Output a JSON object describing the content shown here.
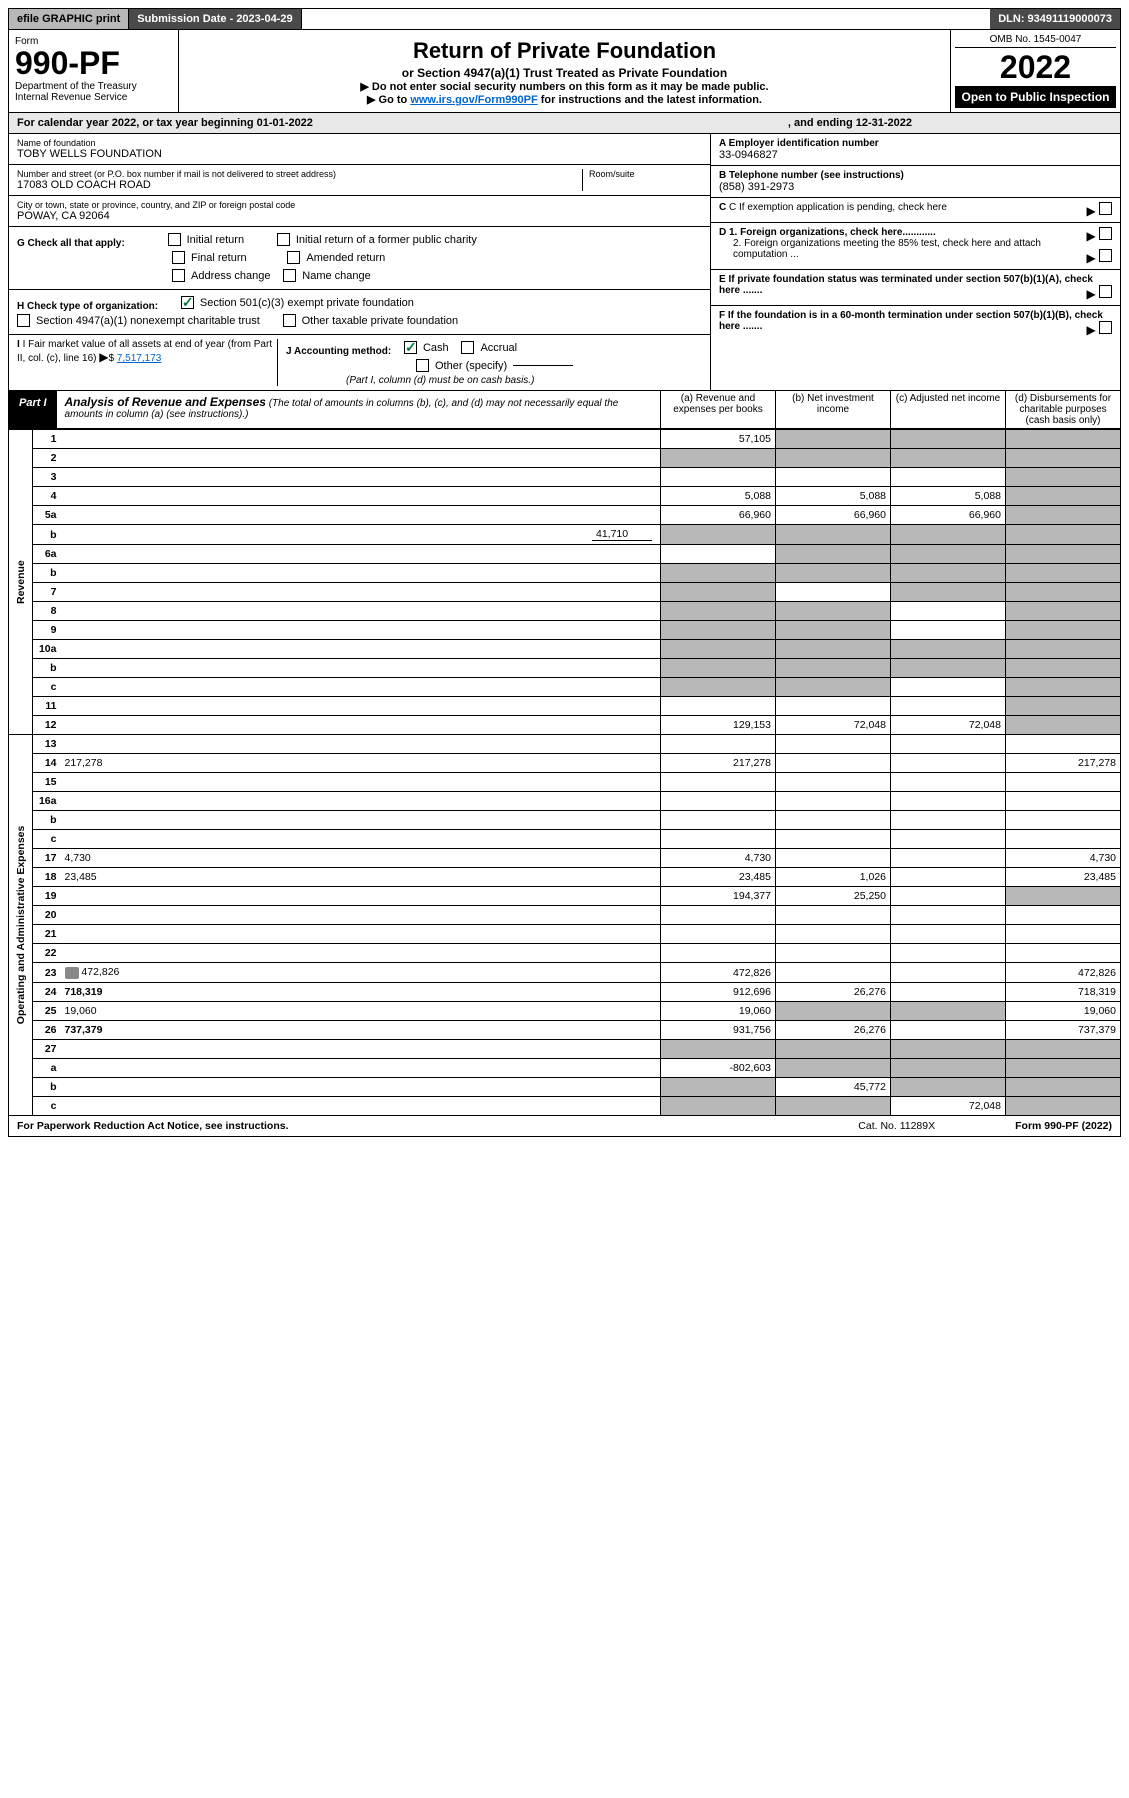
{
  "topbar": {
    "efile": "efile GRAPHIC print",
    "sub_label": "Submission Date - 2023-04-29",
    "dln": "DLN: 93491119000073"
  },
  "header": {
    "form_word": "Form",
    "form_no": "990-PF",
    "dept": "Department of the Treasury\nInternal Revenue Service",
    "title": "Return of Private Foundation",
    "subtitle": "or Section 4947(a)(1) Trust Treated as Private Foundation",
    "instr1": "▶ Do not enter social security numbers on this form as it may be made public.",
    "instr2_pre": "▶ Go to ",
    "instr2_link": "www.irs.gov/Form990PF",
    "instr2_post": " for instructions and the latest information.",
    "omb": "OMB No. 1545-0047",
    "year": "2022",
    "inspection": "Open to Public Inspection"
  },
  "calyear": {
    "text": "For calendar year 2022, or tax year beginning 01-01-2022",
    "ending": ", and ending 12-31-2022"
  },
  "id": {
    "name_label": "Name of foundation",
    "name": "TOBY WELLS FOUNDATION",
    "addr_label": "Number and street (or P.O. box number if mail is not delivered to street address)",
    "addr": "17083 OLD COACH ROAD",
    "room_label": "Room/suite",
    "city_label": "City or town, state or province, country, and ZIP or foreign postal code",
    "city": "POWAY, CA  92064",
    "a_label": "A Employer identification number",
    "a_val": "33-0946827",
    "b_label": "B Telephone number (see instructions)",
    "b_val": "(858) 391-2973",
    "c_label": "C If exemption application is pending, check here",
    "d1_label": "D 1. Foreign organizations, check here............",
    "d2_label": "2. Foreign organizations meeting the 85% test, check here and attach computation ...",
    "e_label": "E  If private foundation status was terminated under section 507(b)(1)(A), check here .......",
    "f_label": "F  If the foundation is in a 60-month termination under section 507(b)(1)(B), check here .......",
    "g_label": "G Check all that apply:",
    "g_opts": [
      "Initial return",
      "Initial return of a former public charity",
      "Final return",
      "Amended return",
      "Address change",
      "Name change"
    ],
    "h_label": "H Check type of organization:",
    "h_opt1": "Section 501(c)(3) exempt private foundation",
    "h_opt2": "Section 4947(a)(1) nonexempt charitable trust",
    "h_opt3": "Other taxable private foundation",
    "i_label": "I Fair market value of all assets at end of year (from Part II, col. (c), line 16)",
    "i_val": "7,517,173",
    "j_label": "J Accounting method:",
    "j_cash": "Cash",
    "j_accrual": "Accrual",
    "j_other": "Other (specify)",
    "j_note": "(Part I, column (d) must be on cash basis.)"
  },
  "part": {
    "label": "Part I",
    "title": "Analysis of Revenue and Expenses",
    "note": "(The total of amounts in columns (b), (c), and (d) may not necessarily equal the amounts in column (a) (see instructions).)",
    "col_a": "(a)   Revenue and expenses per books",
    "col_b": "(b)   Net investment income",
    "col_c": "(c)   Adjusted net income",
    "col_d": "(d)   Disbursements for charitable purposes (cash basis only)"
  },
  "vlabels": {
    "revenue": "Revenue",
    "expenses": "Operating and Administrative Expenses"
  },
  "rows": [
    {
      "n": "1",
      "d": "",
      "a": "57,105",
      "b": "",
      "c": "",
      "db": true,
      "dc": true,
      "dd": true
    },
    {
      "n": "2",
      "d": "",
      "a": "",
      "b": "",
      "c": "",
      "sa": true,
      "db": true,
      "dc": true,
      "dd": true
    },
    {
      "n": "3",
      "d": "",
      "a": "",
      "b": "",
      "c": "",
      "dd": true
    },
    {
      "n": "4",
      "d": "",
      "a": "5,088",
      "b": "5,088",
      "c": "5,088",
      "dd": true
    },
    {
      "n": "5a",
      "d": "",
      "a": "66,960",
      "b": "66,960",
      "c": "66,960",
      "dd": true
    },
    {
      "n": "b",
      "d": "",
      "extra": "41,710",
      "a": "",
      "b": "",
      "c": "",
      "sa": true,
      "sb": true,
      "sc": true,
      "sd": true
    },
    {
      "n": "6a",
      "d": "",
      "a": "",
      "b": "",
      "c": "",
      "sb": true,
      "sc": true,
      "sd": true
    },
    {
      "n": "b",
      "d": "",
      "a": "",
      "b": "",
      "c": "",
      "sa": true,
      "sb": true,
      "sc": true,
      "sd": true
    },
    {
      "n": "7",
      "d": "",
      "a": "",
      "b": "",
      "c": "",
      "sa": true,
      "sc": true,
      "sd": true
    },
    {
      "n": "8",
      "d": "",
      "a": "",
      "b": "",
      "c": "",
      "sa": true,
      "sb": true,
      "sd": true
    },
    {
      "n": "9",
      "d": "",
      "a": "",
      "b": "",
      "c": "",
      "sa": true,
      "sb": true,
      "sd": true
    },
    {
      "n": "10a",
      "d": "",
      "a": "",
      "b": "",
      "c": "",
      "sa": true,
      "sb": true,
      "sc": true,
      "sd": true
    },
    {
      "n": "b",
      "d": "",
      "a": "",
      "b": "",
      "c": "",
      "sa": true,
      "sb": true,
      "sc": true,
      "sd": true
    },
    {
      "n": "c",
      "d": "",
      "a": "",
      "b": "",
      "c": "",
      "sa": true,
      "sb": true,
      "sd": true
    },
    {
      "n": "11",
      "d": "",
      "a": "",
      "b": "",
      "c": "",
      "dd": true
    },
    {
      "n": "12",
      "d": "",
      "bold": true,
      "a": "129,153",
      "b": "72,048",
      "c": "72,048",
      "dd": true
    },
    {
      "n": "13",
      "d": "",
      "a": "",
      "b": "",
      "c": ""
    },
    {
      "n": "14",
      "d": "217,278",
      "a": "217,278",
      "b": "",
      "c": ""
    },
    {
      "n": "15",
      "d": "",
      "a": "",
      "b": "",
      "c": ""
    },
    {
      "n": "16a",
      "d": "",
      "a": "",
      "b": "",
      "c": ""
    },
    {
      "n": "b",
      "d": "",
      "a": "",
      "b": "",
      "c": ""
    },
    {
      "n": "c",
      "d": "",
      "a": "",
      "b": "",
      "c": ""
    },
    {
      "n": "17",
      "d": "4,730",
      "a": "4,730",
      "b": "",
      "c": ""
    },
    {
      "n": "18",
      "d": "23,485",
      "a": "23,485",
      "b": "1,026",
      "c": ""
    },
    {
      "n": "19",
      "d": "",
      "a": "194,377",
      "b": "25,250",
      "c": "",
      "sd": true
    },
    {
      "n": "20",
      "d": "",
      "a": "",
      "b": "",
      "c": ""
    },
    {
      "n": "21",
      "d": "",
      "a": "",
      "b": "",
      "c": ""
    },
    {
      "n": "22",
      "d": "",
      "a": "",
      "b": "",
      "c": ""
    },
    {
      "n": "23",
      "d": "472,826",
      "icon": true,
      "a": "472,826",
      "b": "",
      "c": ""
    },
    {
      "n": "24",
      "d": "718,319",
      "bold": true,
      "a": "912,696",
      "b": "26,276",
      "c": ""
    },
    {
      "n": "25",
      "d": "19,060",
      "a": "19,060",
      "b": "",
      "c": "",
      "sb": true,
      "sc": true
    },
    {
      "n": "26",
      "d": "737,379",
      "bold": true,
      "a": "931,756",
      "b": "26,276",
      "c": ""
    },
    {
      "n": "27",
      "d": "",
      "a": "",
      "b": "",
      "c": "",
      "sa": true,
      "sb": true,
      "sc": true,
      "sd": true
    },
    {
      "n": "a",
      "d": "",
      "bold": true,
      "a": "-802,603",
      "b": "",
      "c": "",
      "sb": true,
      "sc": true,
      "sd": true
    },
    {
      "n": "b",
      "d": "",
      "bold": true,
      "a": "",
      "b": "45,772",
      "c": "",
      "sa": true,
      "sc": true,
      "sd": true
    },
    {
      "n": "c",
      "d": "",
      "bold": true,
      "a": "",
      "b": "",
      "c": "72,048",
      "sa": true,
      "sb": true,
      "sd": true
    }
  ],
  "footer": {
    "paperwork": "For Paperwork Reduction Act Notice, see instructions.",
    "cat": "Cat. No. 11289X",
    "formref": "Form 990-PF (2022)"
  }
}
